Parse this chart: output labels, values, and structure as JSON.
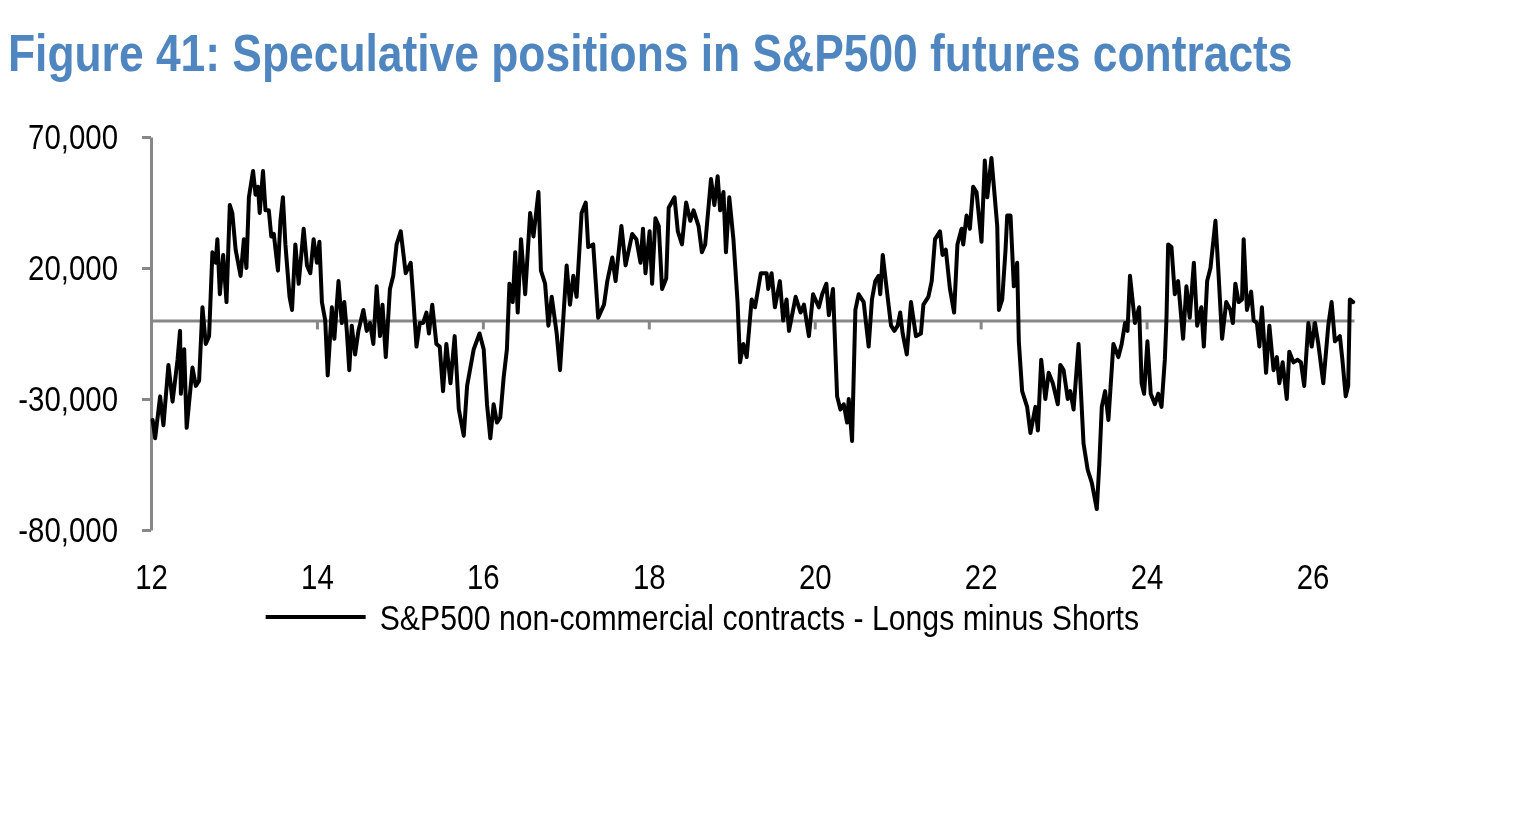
{
  "chart_data": {
    "type": "line",
    "title": "Figure 41: Speculative positions in S&P500 futures contracts",
    "x": [
      12.02,
      12.05,
      12.11,
      12.15,
      12.21,
      12.26,
      12.32,
      12.35,
      12.36,
      12.4,
      12.43,
      12.5,
      12.54,
      12.58,
      12.62,
      12.66,
      12.7,
      12.74,
      12.78,
      12.8,
      12.83,
      12.87,
      12.91,
      12.95,
      12.98,
      13.02,
      13.08,
      13.12,
      13.15,
      13.18,
      13.23,
      13.26,
      13.29,
      13.31,
      13.35,
      13.38,
      13.42,
      13.45,
      13.48,
      13.53,
      13.56,
      13.59,
      13.62,
      13.67,
      13.7,
      13.74,
      13.78,
      13.84,
      13.88,
      13.92,
      13.96,
      14.0,
      14.03,
      14.06,
      14.1,
      14.13,
      14.18,
      14.21,
      14.26,
      14.3,
      14.33,
      14.36,
      14.39,
      14.42,
      14.46,
      14.5,
      14.56,
      14.6,
      14.64,
      14.68,
      14.72,
      14.76,
      14.79,
      14.83,
      14.88,
      14.92,
      14.96,
      15.01,
      15.07,
      15.13,
      15.16,
      15.2,
      15.24,
      15.28,
      15.32,
      15.35,
      15.39,
      15.44,
      15.48,
      15.52,
      15.56,
      15.61,
      15.66,
      15.71,
      15.77,
      15.81,
      15.89,
      15.96,
      16.01,
      16.05,
      16.09,
      16.13,
      16.17,
      16.21,
      16.25,
      16.29,
      16.32,
      16.36,
      16.39,
      16.42,
      16.46,
      16.51,
      16.57,
      16.61,
      16.67,
      16.7,
      16.75,
      16.79,
      16.83,
      16.89,
      16.93,
      16.97,
      17.01,
      17.05,
      17.09,
      17.13,
      17.19,
      17.24,
      17.27,
      17.33,
      17.39,
      17.46,
      17.5,
      17.56,
      17.6,
      17.67,
      17.72,
      17.8,
      17.85,
      17.9,
      17.93,
      17.96,
      18.01,
      18.04,
      18.08,
      18.12,
      18.16,
      18.21,
      18.24,
      18.31,
      18.35,
      18.4,
      18.45,
      18.5,
      18.54,
      18.6,
      18.64,
      18.68,
      18.75,
      18.79,
      18.83,
      18.86,
      18.9,
      18.93,
      18.97,
      19.02,
      19.07,
      19.1,
      19.14,
      19.18,
      19.24,
      19.28,
      19.35,
      19.42,
      19.44,
      19.48,
      19.52,
      19.58,
      19.62,
      19.66,
      19.69,
      19.77,
      19.83,
      19.87,
      19.93,
      19.98,
      20.05,
      20.09,
      20.14,
      20.17,
      20.22,
      20.27,
      20.31,
      20.35,
      20.39,
      20.41,
      20.45,
      20.49,
      20.53,
      20.59,
      20.65,
      20.69,
      20.73,
      20.77,
      20.79,
      20.82,
      20.86,
      20.92,
      20.96,
      21.0,
      21.03,
      21.06,
      21.11,
      21.16,
      21.22,
      21.28,
      21.31,
      21.37,
      21.41,
      21.45,
      21.51,
      21.54,
      21.58,
      21.63,
      21.68,
      21.72,
      21.77,
      21.79,
      21.83,
      21.87,
      21.91,
      21.95,
      22.01,
      22.05,
      22.08,
      22.13,
      22.2,
      22.22,
      22.26,
      22.3,
      22.32,
      22.36,
      22.4,
      22.44,
      22.46,
      22.5,
      22.56,
      22.6,
      22.66,
      22.69,
      22.73,
      22.78,
      22.82,
      22.87,
      22.93,
      22.96,
      23.0,
      23.05,
      23.08,
      23.12,
      23.18,
      23.24,
      23.29,
      23.34,
      23.4,
      23.43,
      23.46,
      23.5,
      23.54,
      23.6,
      23.66,
      23.7,
      23.74,
      23.77,
      23.8,
      23.83,
      23.86,
      23.91,
      23.94,
      23.97,
      24.01,
      24.05,
      24.1,
      24.14,
      24.18,
      24.22,
      24.24,
      24.26,
      24.3,
      24.34,
      24.38,
      24.44,
      24.48,
      24.52,
      24.57,
      24.61,
      24.66,
      24.69,
      24.73,
      24.77,
      24.83,
      24.86,
      24.91,
      24.96,
      25.01,
      25.04,
      25.07,
      25.11,
      25.15,
      25.17,
      25.21,
      25.26,
      25.29,
      25.33,
      25.36,
      25.39,
      25.44,
      25.48,
      25.53,
      25.57,
      25.6,
      25.64,
      25.69,
      25.72,
      25.77,
      25.82,
      25.86,
      25.9,
      25.95,
      25.99,
      26.03,
      26.07,
      26.13,
      26.19,
      26.23,
      26.27,
      26.33,
      26.36,
      26.4,
      26.43,
      26.45,
      26.49
    ],
    "series": [
      {
        "name": "S&P500 non-commercial contracts - Longs minus Shorts",
        "color": "#000000",
        "values": [
          -38000,
          -45000,
          -29000,
          -40000,
          -17000,
          -31000,
          -15000,
          -4000,
          -28000,
          -11000,
          -41000,
          -18000,
          -25000,
          -23000,
          5000,
          -9000,
          -6000,
          26000,
          22000,
          31000,
          10000,
          25000,
          7000,
          44000,
          41000,
          27000,
          17000,
          31000,
          20000,
          47000,
          57000,
          48000,
          51000,
          41000,
          57000,
          42000,
          42000,
          32000,
          33000,
          19000,
          38000,
          47000,
          29000,
          9000,
          4000,
          29000,
          14000,
          35000,
          21000,
          18000,
          31000,
          22000,
          30000,
          7000,
          0,
          -21000,
          5000,
          -7000,
          15000,
          -1000,
          7000,
          -4000,
          -19000,
          -2000,
          -13000,
          -4000,
          4000,
          -4000,
          -1000,
          -9000,
          13000,
          -6000,
          6000,
          -14000,
          12000,
          17000,
          29000,
          34000,
          18000,
          22000,
          9000,
          -10000,
          -1000,
          -1000,
          3000,
          -5000,
          6000,
          -9000,
          -10000,
          -27000,
          -9000,
          -24000,
          -6000,
          -34000,
          -44000,
          -25000,
          -11000,
          -5000,
          -11000,
          -32000,
          -45000,
          -32000,
          -39000,
          -37000,
          -22000,
          -11000,
          14000,
          7000,
          26000,
          3000,
          31000,
          10000,
          41000,
          32000,
          49000,
          19000,
          14000,
          -2000,
          9000,
          -5000,
          -19000,
          1000,
          21000,
          6000,
          17000,
          9000,
          41000,
          45000,
          28000,
          29000,
          1000,
          6000,
          15000,
          24000,
          15000,
          36000,
          21000,
          33000,
          31000,
          22000,
          35000,
          18000,
          34000,
          14000,
          39000,
          36000,
          12000,
          16000,
          43000,
          47000,
          34000,
          29000,
          45000,
          38000,
          42000,
          36000,
          26000,
          29000,
          54000,
          44000,
          55000,
          42000,
          49000,
          26000,
          47000,
          31000,
          7000,
          -16000,
          -9000,
          -14000,
          8000,
          5000,
          18000,
          18000,
          12000,
          18000,
          5000,
          15000,
          0,
          8000,
          -4000,
          9000,
          3000,
          6000,
          -6000,
          10000,
          5000,
          10000,
          14000,
          2000,
          12000,
          -29000,
          -34000,
          -32000,
          -39000,
          -30000,
          -46000,
          4000,
          10000,
          7000,
          -10000,
          8000,
          15000,
          17000,
          10000,
          25000,
          14000,
          -2000,
          -4000,
          -2000,
          3000,
          -5000,
          -13000,
          7000,
          -6000,
          -5000,
          6000,
          9000,
          15000,
          31000,
          34000,
          25000,
          27000,
          12000,
          3000,
          29000,
          35000,
          29000,
          40000,
          35000,
          51000,
          49000,
          30000,
          61000,
          47000,
          62000,
          36000,
          4000,
          8000,
          27000,
          40000,
          40000,
          13000,
          22000,
          -8000,
          -27000,
          -33000,
          -43000,
          -33000,
          -42000,
          -15000,
          -30000,
          -20000,
          -24000,
          -32000,
          -17000,
          -19000,
          -30000,
          -27000,
          -34000,
          -9000,
          -47000,
          -57000,
          -62000,
          -72000,
          -55000,
          -33000,
          -27000,
          -38000,
          -9000,
          -14000,
          -9000,
          -1000,
          -4000,
          17000,
          8000,
          -1000,
          5000,
          -24000,
          -28000,
          -8000,
          -28000,
          -32000,
          -28000,
          -33000,
          -15000,
          1000,
          29000,
          28000,
          10000,
          15000,
          -7000,
          13000,
          1000,
          22000,
          -2000,
          5000,
          -10000,
          15000,
          20000,
          38000,
          22000,
          -7000,
          7000,
          4000,
          -1000,
          14000,
          7000,
          8000,
          31000,
          4000,
          11000,
          0,
          -1000,
          -10000,
          5000,
          -20000,
          -2000,
          -19000,
          -14000,
          -24000,
          -16000,
          -30000,
          -12000,
          -16000,
          -15000,
          -16000,
          -25000,
          -1000,
          -10000,
          -1000,
          -9000,
          -24000,
          -2000,
          7000,
          -8000,
          -6000,
          -15000,
          -29000,
          -25000,
          8000,
          7000
        ]
      }
    ],
    "xlim": [
      12,
      26.5
    ],
    "xticks": [
      12,
      14,
      16,
      18,
      20,
      22,
      24,
      26
    ],
    "ylim": [
      -80000,
      70000
    ],
    "yticks": [
      {
        "value": -80000,
        "label": "-80,000"
      },
      {
        "value": -30000,
        "label": "-30,000"
      },
      {
        "value": 20000,
        "label": "20,000"
      },
      {
        "value": 70000,
        "label": "70,000"
      }
    ],
    "legend": "bottom"
  }
}
